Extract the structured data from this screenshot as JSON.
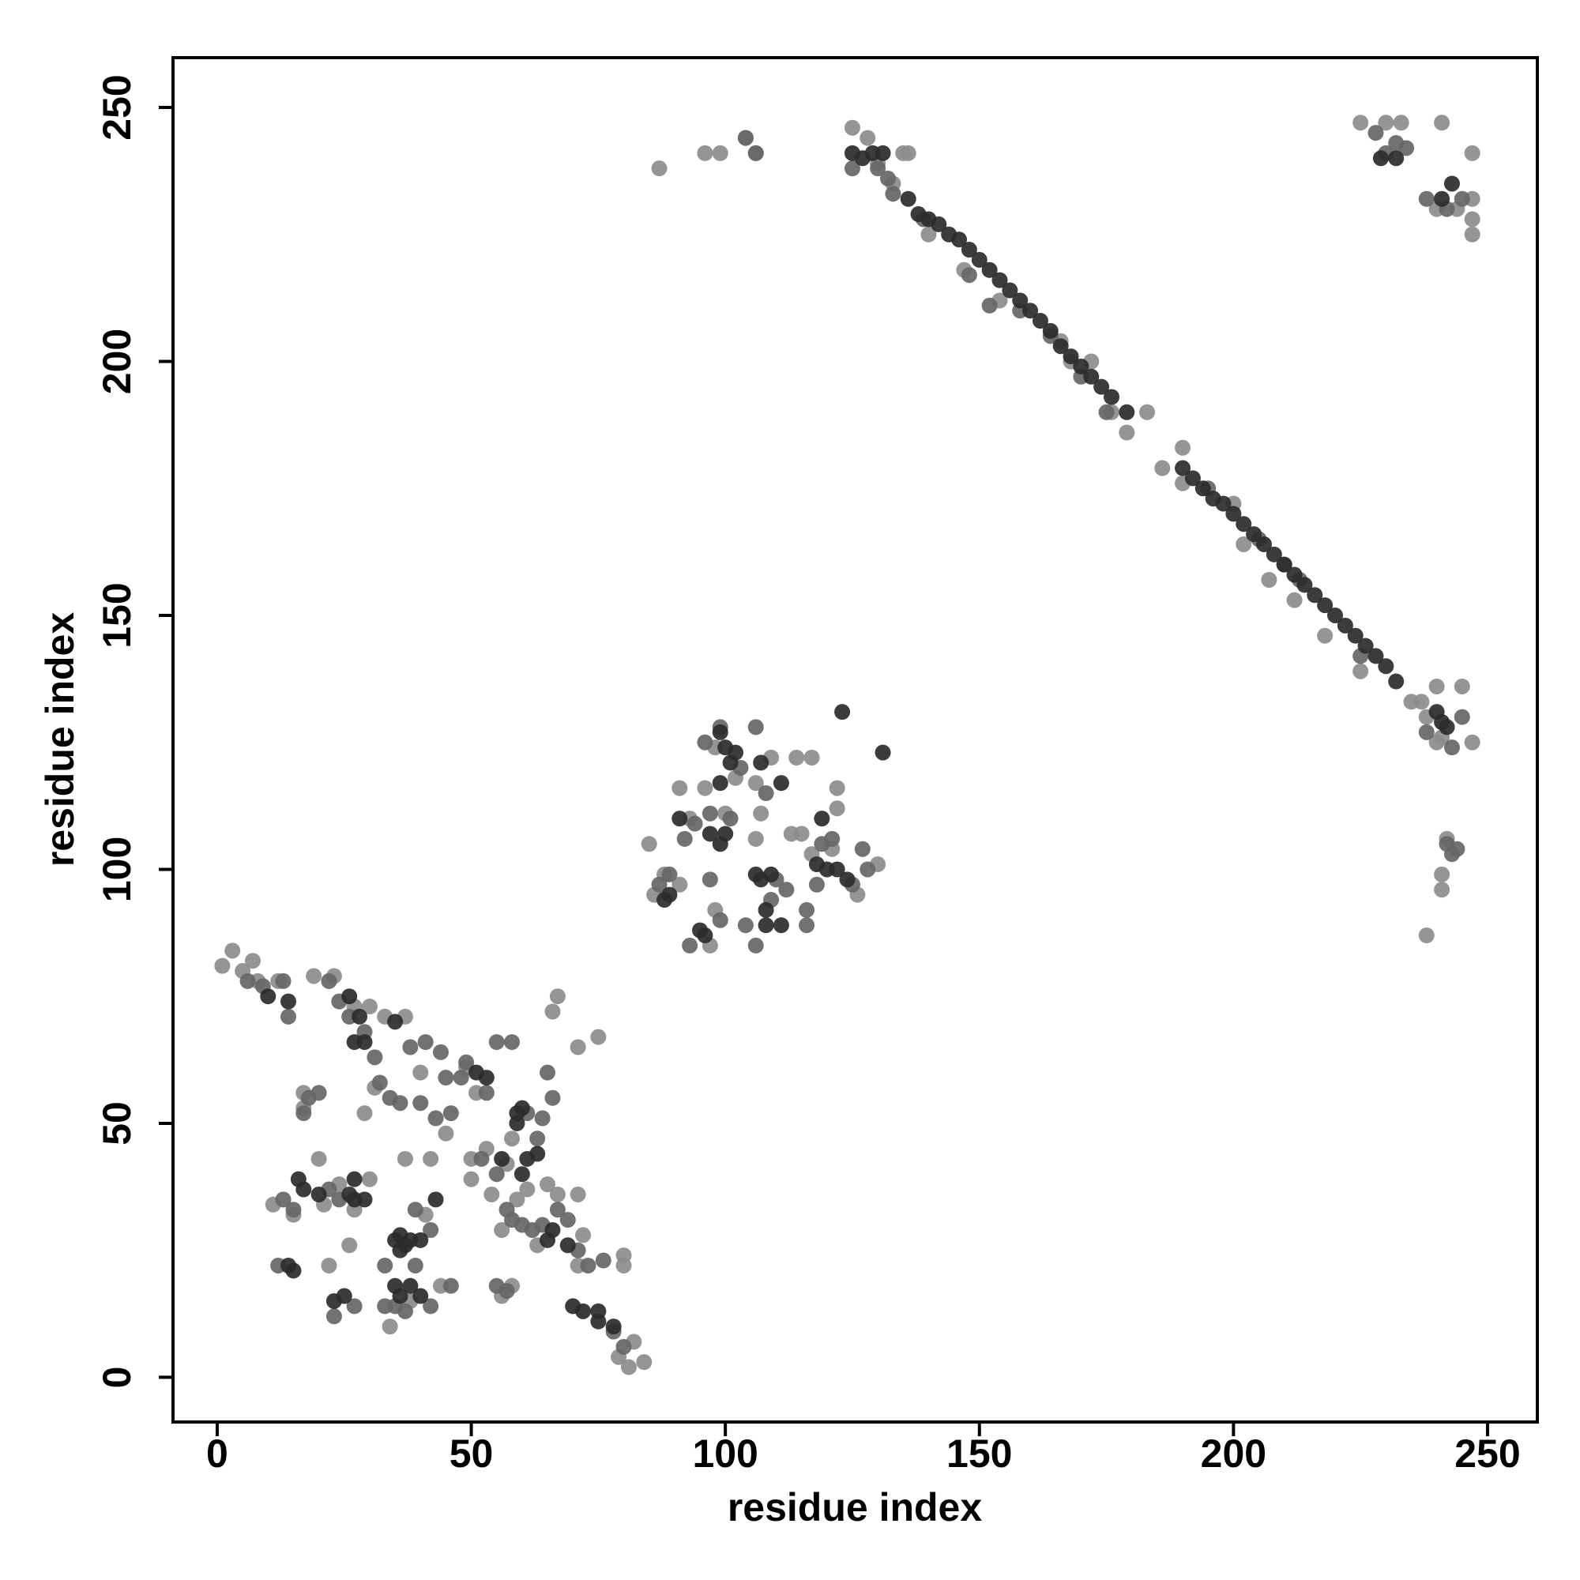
{
  "chart_data": {
    "type": "scatter",
    "xlabel": "residue index",
    "ylabel": "residue index",
    "xlim": [
      -8.7,
      259.8
    ],
    "ylim": [
      -8.8,
      259.8
    ],
    "xticks": [
      0,
      50,
      100,
      150,
      200,
      250
    ],
    "yticks": [
      0,
      50,
      100,
      150,
      200,
      250
    ],
    "series": [
      {
        "color": "#8c8c8c",
        "x": [
          87,
          96,
          99,
          104,
          106,
          125,
          128,
          130,
          135,
          133,
          136,
          140,
          147,
          154,
          166,
          168,
          172,
          176,
          179,
          183,
          186,
          190,
          190,
          200,
          202,
          207,
          212,
          218,
          225,
          235,
          237,
          238,
          240,
          247,
          240,
          245,
          241,
          238,
          241,
          241,
          242,
          225,
          230,
          233,
          241,
          247,
          247,
          247,
          247,
          240,
          244,
          85,
          88,
          91,
          86,
          91,
          93,
          96,
          98,
          97,
          98,
          102,
          106,
          107,
          109,
          114,
          117,
          113,
          115,
          117,
          122,
          122,
          121,
          130,
          126,
          106,
          100,
          1,
          3,
          5,
          7,
          8,
          12,
          19,
          23,
          27,
          33,
          37,
          31,
          29,
          40,
          45,
          49,
          51,
          58,
          57,
          50,
          53,
          50,
          54,
          59,
          56,
          61,
          65,
          67,
          71,
          66,
          67,
          71,
          75,
          63,
          71,
          72,
          80,
          80,
          79,
          81,
          84,
          82,
          56,
          58,
          42,
          37,
          44,
          34,
          38,
          11,
          15,
          21,
          24,
          27,
          30,
          20,
          22,
          26,
          41,
          17,
          17,
          30
        ],
        "values": [
          238,
          241,
          241,
          244,
          241,
          246,
          244,
          239,
          241,
          235,
          241,
          225,
          218,
          212,
          204,
          200,
          200,
          190,
          186,
          190,
          179,
          183,
          176,
          172,
          164,
          157,
          153,
          146,
          139,
          133,
          133,
          130,
          125,
          125,
          136,
          136,
          126,
          87,
          96,
          99,
          106,
          247,
          247,
          247,
          247,
          241,
          232,
          228,
          225,
          230,
          230,
          105,
          99,
          97,
          95,
          116,
          110,
          116,
          92,
          85,
          124,
          118,
          117,
          111,
          122,
          122,
          122,
          107,
          107,
          103,
          116,
          112,
          104,
          101,
          95,
          106,
          111,
          81,
          84,
          80,
          82,
          78,
          78,
          79,
          79,
          73,
          71,
          71,
          57,
          52,
          60,
          48,
          61,
          56,
          47,
          42,
          43,
          45,
          39,
          36,
          35,
          29,
          37,
          38,
          36,
          36,
          72,
          75,
          65,
          67,
          26,
          22,
          28,
          24,
          22,
          4,
          2,
          3,
          7,
          16,
          18,
          43,
          43,
          18,
          10,
          15,
          34,
          32,
          34,
          38,
          33,
          39,
          43,
          22,
          26,
          32,
          56,
          53,
          73
        ]
      },
      {
        "color": "#666666",
        "x": [
          232,
          230,
          234,
          228,
          245,
          242,
          238,
          243,
          238,
          245,
          244,
          242,
          243,
          125,
          130,
          132,
          133,
          139,
          148,
          152,
          158,
          164,
          170,
          175,
          195,
          205,
          210,
          213,
          225,
          104,
          106,
          96,
          99,
          103,
          106,
          108,
          97,
          94,
          92,
          101,
          97,
          89,
          87,
          93,
          99,
          104,
          106,
          109,
          112,
          110,
          116,
          116,
          119,
          121,
          118,
          127,
          128,
          125,
          6,
          9,
          13,
          14,
          22,
          24,
          26,
          29,
          31,
          32,
          34,
          36,
          38,
          41,
          44,
          45,
          40,
          43,
          46,
          48,
          49,
          53,
          55,
          58,
          61,
          63,
          64,
          66,
          65,
          52,
          55,
          57,
          58,
          60,
          62,
          64,
          67,
          69,
          71,
          73,
          76,
          78,
          80,
          57,
          55,
          46,
          42,
          37,
          35,
          33,
          33,
          39,
          24,
          22,
          15,
          13,
          18,
          20,
          17,
          12,
          27,
          23,
          39,
          42
        ],
        "values": [
          243,
          241,
          242,
          245,
          232,
          230,
          232,
          124,
          127,
          130,
          104,
          105,
          103,
          238,
          238,
          236,
          233,
          228,
          217,
          211,
          210,
          205,
          197,
          190,
          175,
          165,
          160,
          157,
          142,
          244,
          241,
          125,
          128,
          120,
          128,
          115,
          111,
          109,
          106,
          110,
          98,
          99,
          97,
          85,
          90,
          89,
          85,
          94,
          96,
          98,
          92,
          89,
          105,
          106,
          97,
          104,
          100,
          97,
          78,
          77,
          78,
          71,
          78,
          74,
          71,
          68,
          63,
          58,
          55,
          54,
          65,
          66,
          64,
          59,
          54,
          51,
          52,
          59,
          62,
          56,
          66,
          66,
          52,
          47,
          51,
          55,
          60,
          43,
          40,
          33,
          31,
          30,
          29,
          30,
          33,
          31,
          25,
          22,
          23,
          9,
          6,
          17,
          18,
          18,
          14,
          13,
          14,
          14,
          22,
          22,
          35,
          37,
          33,
          35,
          55,
          56,
          52,
          22,
          14,
          12,
          33,
          29
        ]
      },
      {
        "color": "#2b2b2b",
        "x": [
          136,
          138,
          140,
          142,
          144,
          146,
          148,
          150,
          152,
          154,
          156,
          158,
          160,
          162,
          164,
          166,
          168,
          170,
          172,
          174,
          176,
          179,
          190,
          192,
          194,
          196,
          198,
          200,
          202,
          204,
          206,
          208,
          210,
          212,
          214,
          216,
          218,
          220,
          222,
          224,
          226,
          228,
          230,
          232,
          125,
          127,
          129,
          131,
          240,
          241,
          242,
          229,
          232,
          241,
          243,
          99,
          100,
          101,
          102,
          99,
          97,
          100,
          99,
          89,
          88,
          95,
          96,
          106,
          107,
          109,
          108,
          108,
          111,
          118,
          120,
          122,
          124,
          119,
          107,
          111,
          123,
          131,
          91,
          10,
          14,
          26,
          28,
          27,
          29,
          35,
          51,
          53,
          59,
          60,
          59,
          26,
          27,
          29,
          27,
          16,
          17,
          20,
          35,
          36,
          37,
          38,
          36,
          40,
          35,
          36,
          38,
          40,
          23,
          25,
          14,
          15,
          66,
          65,
          69,
          70,
          72,
          75,
          75,
          78,
          61,
          63,
          56,
          60,
          43
        ],
        "values": [
          232,
          229,
          228,
          227,
          225,
          224,
          222,
          220,
          218,
          216,
          214,
          212,
          210,
          208,
          206,
          203,
          201,
          199,
          197,
          195,
          193,
          190,
          179,
          177,
          175,
          173,
          172,
          170,
          168,
          166,
          164,
          162,
          160,
          158,
          156,
          154,
          152,
          150,
          148,
          146,
          144,
          142,
          140,
          137,
          241,
          240,
          241,
          241,
          131,
          129,
          128,
          240,
          240,
          232,
          235,
          127,
          124,
          121,
          123,
          117,
          107,
          107,
          105,
          95,
          94,
          88,
          87,
          99,
          98,
          99,
          92,
          89,
          89,
          101,
          100,
          100,
          98,
          110,
          121,
          117,
          131,
          123,
          110,
          75,
          74,
          75,
          71,
          66,
          66,
          70,
          60,
          59,
          52,
          53,
          50,
          36,
          35,
          35,
          39,
          39,
          37,
          36,
          27,
          28,
          26,
          27,
          25,
          27,
          18,
          16,
          18,
          16,
          15,
          16,
          22,
          21,
          29,
          27,
          26,
          14,
          13,
          13,
          11,
          10,
          43,
          44,
          43,
          40,
          35
        ]
      }
    ]
  }
}
